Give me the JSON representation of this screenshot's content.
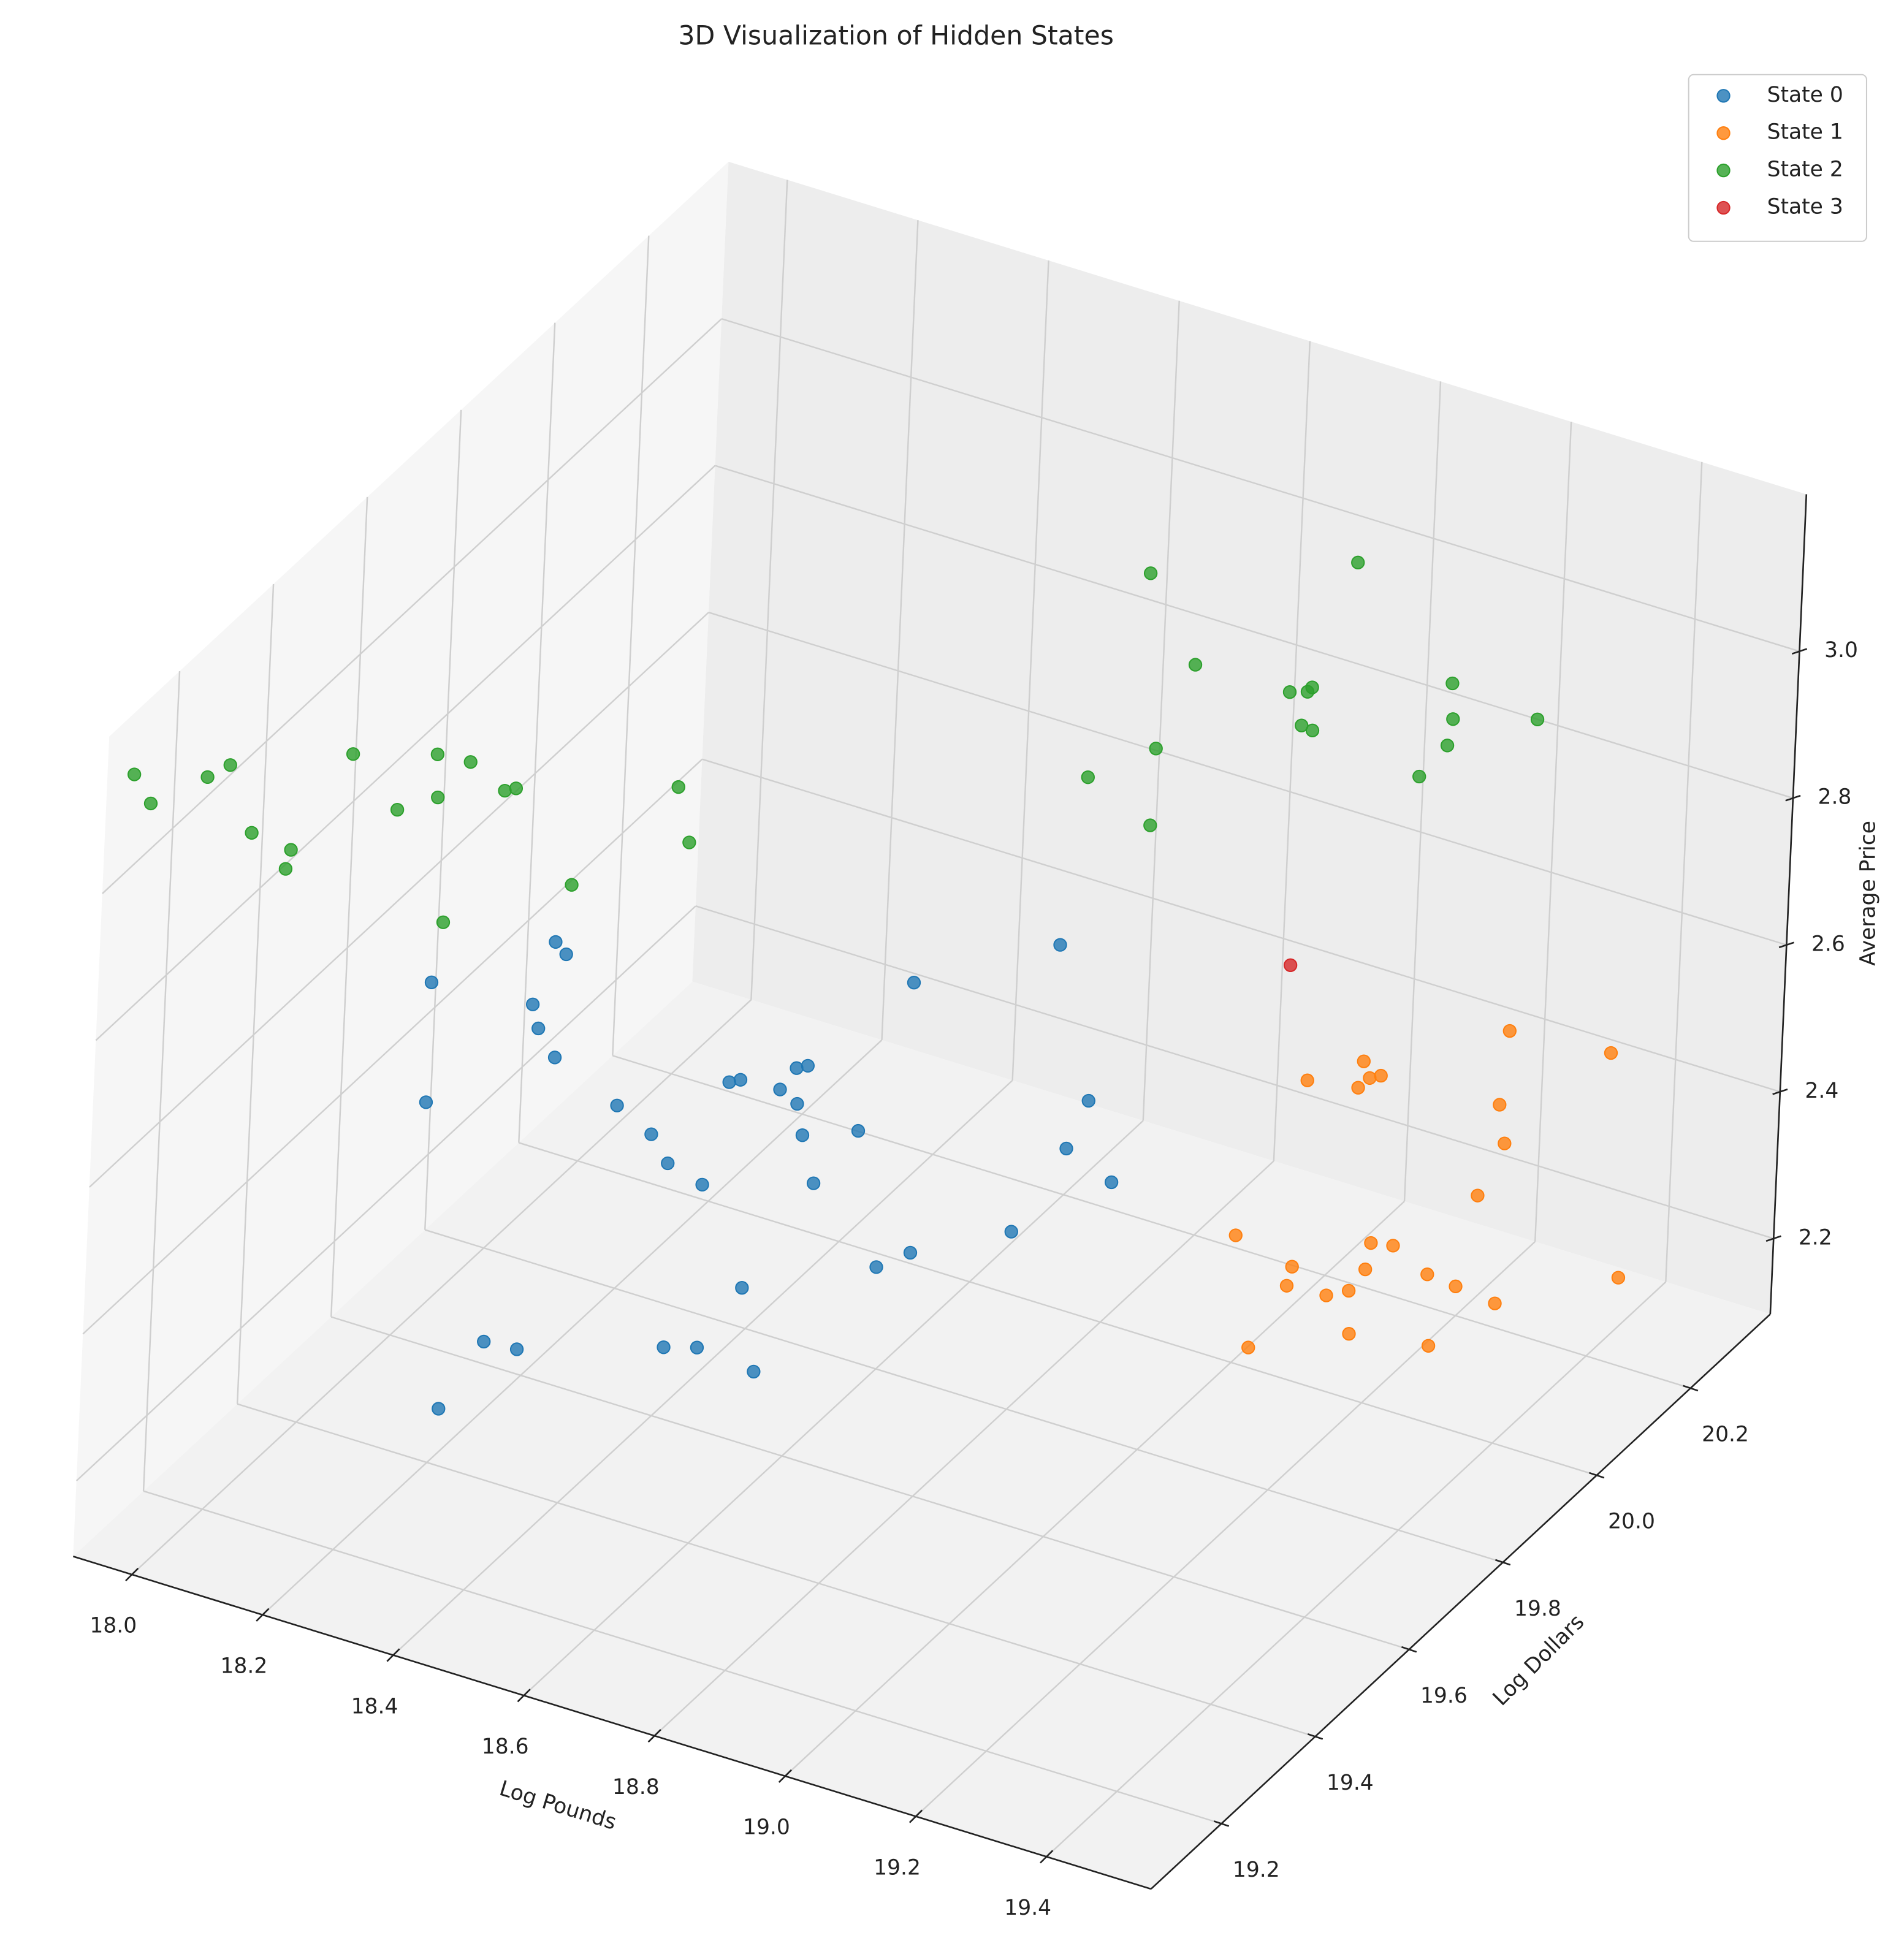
{
  "chart_data": {
    "type": "scatter3d",
    "title": "3D Visualization of Hidden States",
    "xlabel": "Log Pounds",
    "ylabel": "Log Dollars",
    "zlabel": "Average Price",
    "xlim": [
      17.91,
      19.56
    ],
    "ylim": [
      19.05,
      20.37
    ],
    "zlim": [
      2.097,
      3.214
    ],
    "xticks": [
      {
        "value": 18,
        "label": "18.0"
      },
      18.2,
      18.4,
      18.6,
      18.8,
      {
        "value": 19,
        "label": "19.0"
      },
      19.2,
      19.4
    ],
    "yticks": [
      19.2,
      19.4,
      19.6,
      19.8,
      {
        "value": 20,
        "label": "20.0"
      },
      20.2
    ],
    "zticks": [
      2.2,
      2.4,
      2.6,
      2.8,
      {
        "value": 3,
        "label": "3.0"
      }
    ],
    "grid": true,
    "legend": "upper right",
    "series": [
      {
        "name": "State 0",
        "color": "#1f77b4",
        "x": [
          18.83,
          18.7,
          18.36,
          18.37,
          18.25,
          18.35,
          18.36,
          18.38,
          18.27,
          18.45,
          18.55,
          18.56,
          18.61,
          18.62,
          18.6,
          18.62,
          18.49,
          18.51,
          18.55,
          18.63,
          18.65,
          18.68,
          18.89,
          18.88,
          18.93,
          18.85,
          18.76,
          18.73,
          18.61,
          18.38,
          18.41,
          18.55,
          18.58,
          18.64,
          18.35
        ],
        "y": [
          19.83,
          19.7,
          19.4,
          19.41,
          19.29,
          19.37,
          19.37,
          19.38,
          19.26,
          19.42,
          19.52,
          19.53,
          19.58,
          19.59,
          19.56,
          19.57,
          19.44,
          19.45,
          19.47,
          19.57,
          19.57,
          19.62,
          19.82,
          19.79,
          19.82,
          19.72,
          19.63,
          19.6,
          19.48,
          19.25,
          19.28,
          19.4,
          19.43,
          19.47,
          19.2
        ],
        "z": [
          2.72,
          2.71,
          2.85,
          2.83,
          2.83,
          2.78,
          2.75,
          2.71,
          2.69,
          2.64,
          2.64,
          2.64,
          2.64,
          2.64,
          2.62,
          2.6,
          2.6,
          2.56,
          2.53,
          2.56,
          2.5,
          2.55,
          2.53,
          2.48,
          2.43,
          2.4,
          2.4,
          2.39,
          2.4,
          2.4,
          2.38,
          2.35,
          2.34,
          2.3,
          2.33
        ]
      },
      {
        "name": "State 1",
        "color": "#ff7f0e",
        "x": [
          19.27,
          19.37,
          19.14,
          19.09,
          19.14,
          19.15,
          19.16,
          19.28,
          19.29,
          19.28,
          19.06,
          19.19,
          19.21,
          19.12,
          19.19,
          19.25,
          19.12,
          19.16,
          19.18,
          19.28,
          19.32,
          19.43,
          19.1,
          19.19,
          19.27
        ],
        "y": [
          20.19,
          20.27,
          20.06,
          20.01,
          20.05,
          20.06,
          20.07,
          20.16,
          20.16,
          20.12,
          19.91,
          20.02,
          20.04,
          19.95,
          20.01,
          20.06,
          19.94,
          19.97,
          19.99,
          20.08,
          20.11,
          20.22,
          19.89,
          19.98,
          20.04
        ],
        "z": [
          2.51,
          2.46,
          2.51,
          2.5,
          2.48,
          2.49,
          2.49,
          2.43,
          2.38,
          2.33,
          2.34,
          2.3,
          2.29,
          2.29,
          2.27,
          2.25,
          2.27,
          2.25,
          2.25,
          2.23,
          2.2,
          2.2,
          2.21,
          2.2,
          2.17
        ]
      },
      {
        "name": "State 2",
        "color": "#2ca02c",
        "x": [
          17.93,
          17.95,
          18.0,
          18.02,
          18.05,
          18.09,
          18.09,
          18.13,
          18.18,
          18.21,
          18.22,
          18.24,
          18.28,
          18.29,
          18.36,
          18.25,
          18.44,
          18.46,
          18.84,
          19.03,
          18.9,
          18.99,
          19.01,
          19.01,
          19.01,
          19.02,
          18.88,
          18.82,
          18.89,
          19.14,
          19.15,
          19.15,
          19.23,
          19.13
        ],
        "y": [
          19.08,
          19.09,
          19.14,
          19.16,
          19.17,
          19.2,
          19.19,
          19.27,
          19.3,
          19.34,
          19.33,
          19.37,
          19.39,
          19.4,
          19.43,
          19.31,
          19.54,
          19.54,
          19.98,
          20.16,
          20.0,
          20.08,
          20.09,
          20.1,
          20.08,
          20.09,
          19.95,
          19.89,
          19.93,
          20.22,
          20.21,
          20.2,
          20.28,
          20.17
        ],
        "z": [
          3.15,
          3.11,
          3.13,
          3.14,
          3.05,
          3.02,
          3.0,
          3.12,
          3.04,
          3.1,
          3.05,
          3.08,
          3.04,
          3.04,
          2.91,
          2.9,
          3.0,
          2.93,
          3.14,
          3.1,
          3.02,
          2.96,
          2.96,
          2.96,
          2.92,
          2.91,
          2.93,
          2.91,
          2.84,
          2.93,
          2.89,
          2.86,
          2.87,
          2.83
        ]
      },
      {
        "name": "State 3",
        "color": "#d62728",
        "x": [
          19.05
        ],
        "y": [
          20.02
        ],
        "z": [
          2.64
        ]
      }
    ]
  }
}
